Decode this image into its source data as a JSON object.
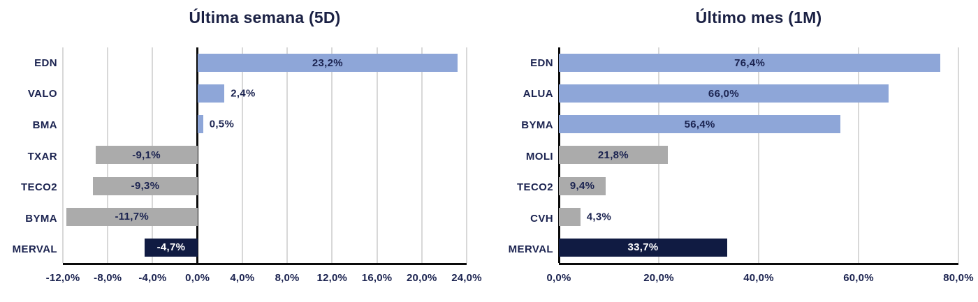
{
  "colors": {
    "positive_bar": "#8EA6D8",
    "neutral_bar": "#ABABAB",
    "index_bar": "#101B42",
    "text": "#1B2350",
    "label_on_dark": "#FFFFFF",
    "gridline": "#D8D8D8",
    "axis": "#0A0A0A"
  },
  "chart_data": [
    {
      "type": "bar",
      "orientation": "horizontal",
      "title": "Última semana (5D)",
      "categories": [
        "EDN",
        "VALO",
        "BMA",
        "TXAR",
        "TECO2",
        "BYMA",
        "MERVAL"
      ],
      "values": [
        23.2,
        2.4,
        0.5,
        -9.1,
        -9.3,
        -11.7,
        -4.7
      ],
      "value_labels": [
        "23,2%",
        "2,4%",
        "0,5%",
        "-9,1%",
        "-9,3%",
        "-11,7%",
        "-4,7%"
      ],
      "bar_colors": [
        "blue",
        "blue",
        "blue",
        "gray",
        "gray",
        "gray",
        "navy"
      ],
      "label_placements": [
        "inside",
        "outside",
        "outside",
        "inside",
        "inside",
        "inside",
        "inside"
      ],
      "xlim": [
        -12,
        24
      ],
      "tick_values": [
        -12,
        -8,
        -4,
        0,
        4,
        8,
        12,
        16,
        20,
        24
      ],
      "tick_labels": [
        "-12,0%",
        "-8,0%",
        "-4,0%",
        "0,0%",
        "4,0%",
        "8,0%",
        "12,0%",
        "16,0%",
        "20,0%",
        "24,0%"
      ],
      "grid": true,
      "zero_line": true,
      "legend": "none"
    },
    {
      "type": "bar",
      "orientation": "horizontal",
      "title": "Último mes (1M)",
      "categories": [
        "EDN",
        "ALUA",
        "BYMA",
        "MOLI",
        "TECO2",
        "CVH",
        "MERVAL"
      ],
      "values": [
        76.4,
        66.0,
        56.4,
        21.8,
        9.4,
        4.3,
        33.7
      ],
      "value_labels": [
        "76,4%",
        "66,0%",
        "56,4%",
        "21,8%",
        "9,4%",
        "4,3%",
        "33,7%"
      ],
      "bar_colors": [
        "blue",
        "blue",
        "blue",
        "gray",
        "gray",
        "gray",
        "navy"
      ],
      "label_placements": [
        "inside",
        "inside",
        "inside",
        "inside",
        "inside",
        "outside",
        "inside"
      ],
      "xlim": [
        0,
        80
      ],
      "tick_values": [
        0,
        20,
        40,
        60,
        80
      ],
      "tick_labels": [
        "0,0%",
        "20,0%",
        "40,0%",
        "60,0%",
        "80,0%"
      ],
      "grid": true,
      "zero_line": true,
      "legend": "none"
    }
  ]
}
